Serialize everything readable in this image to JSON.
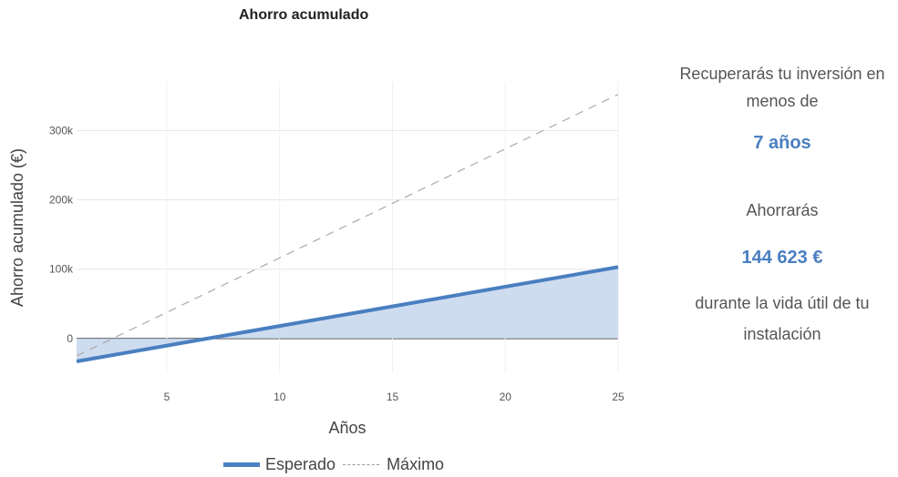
{
  "chart_data": {
    "type": "line",
    "title": "Ahorro acumulado",
    "xlabel": "Años",
    "ylabel": "Ahorro acumulado (€)",
    "x_ticks": [
      5,
      10,
      15,
      20,
      25
    ],
    "y_ticks": [
      {
        "value": 0,
        "label": "0"
      },
      {
        "value": 100000,
        "label": "100k"
      },
      {
        "value": 200000,
        "label": "200k"
      },
      {
        "value": 300000,
        "label": "300k"
      }
    ],
    "xlim": [
      1,
      25
    ],
    "ylim": [
      -50000,
      370000
    ],
    "series": [
      {
        "name": "Esperado",
        "style": "solid-area",
        "color": "#4a7fc1",
        "fill": "#c5d6ec",
        "x": [
          1,
          6.8,
          25
        ],
        "y": [
          -33000,
          0,
          103000
        ]
      },
      {
        "name": "Máximo",
        "style": "dashed",
        "color": "#aaaaaa",
        "x": [
          1,
          25
        ],
        "y": [
          -25000,
          352000
        ]
      }
    ],
    "legend_position": "bottom"
  },
  "side": {
    "line1": "Recuperarás tu inversión en",
    "line2": "menos de",
    "payback": "7 años",
    "line3": "Ahorrarás",
    "savings": "144 623 €",
    "line4": "durante la vida útil de tu",
    "line5": "instalación"
  }
}
